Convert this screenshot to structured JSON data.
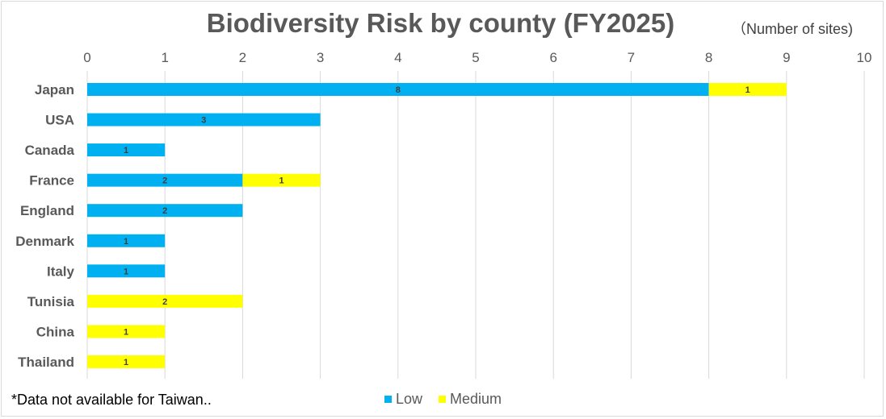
{
  "chart_data": {
    "type": "bar",
    "orientation": "horizontal",
    "stacked": true,
    "title": "Biodiversity Risk by county (FY2025)",
    "unit_label": "（Number of sites)",
    "note": "*Data not available for Taiwan..",
    "categories": [
      "Japan",
      "USA",
      "Canada",
      "France",
      "England",
      "Denmark",
      "Italy",
      "Tunisia",
      "China",
      "Thailand"
    ],
    "series": [
      {
        "name": "Low",
        "color": "#00B0F0",
        "values": [
          8,
          3,
          1,
          2,
          2,
          1,
          1,
          0,
          0,
          0
        ]
      },
      {
        "name": "Medium",
        "color": "#FFFF00",
        "values": [
          1,
          0,
          0,
          1,
          0,
          0,
          0,
          2,
          1,
          1
        ]
      }
    ],
    "xlim": [
      0,
      10
    ],
    "xticks": [
      "0",
      "1",
      "2",
      "3",
      "4",
      "5",
      "6",
      "7",
      "8",
      "9",
      "10"
    ],
    "x_axis_position": "top",
    "grid": true,
    "legend_position": "bottom"
  }
}
